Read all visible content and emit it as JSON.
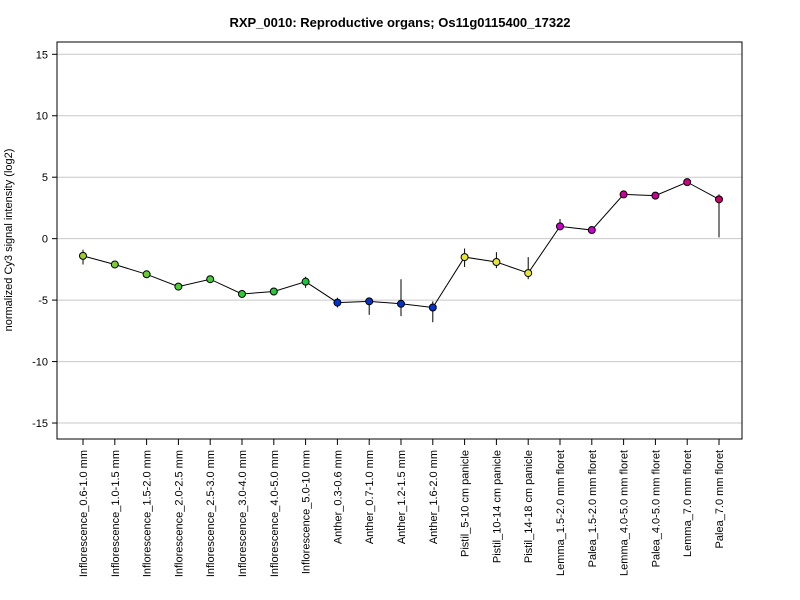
{
  "chart_data": {
    "type": "line",
    "title": "RXP_0010: Reproductive organs; Os11g0115400_17322",
    "xlabel": "",
    "ylabel": "normalized Cy3 signal intensity (log2)",
    "ylim": [
      -16.3,
      16
    ],
    "yticks": [
      15,
      10,
      5,
      0,
      -5,
      -10,
      -15
    ],
    "grid": "horizontal",
    "categories": [
      "Inflorescence_0.6-1.0 mm",
      "Inflorescence_1.0-1.5 mm",
      "Inflorescence_1.5-2.0 mm",
      "Inflorescence_2.0-2.5 mm",
      "Inflorescence_2.5-3.0 mm",
      "Inflorescence_3.0-4.0 mm",
      "Inflorescence_4.0-5.0 mm",
      "Inflorescence_5.0-10 mm",
      "Anther_0.3-0.6 mm",
      "Anther_0.7-1.0 mm",
      "Anther_1.2-1.5 mm",
      "Anther_1.6-2.0 mm",
      "Pistil_5-10 cm panicle",
      "Pistil_10-14 cm panicle",
      "Pistil_14-18 cm panicle",
      "Lemma_1.5-2.0 mm floret",
      "Palea_1.5-2.0 mm floret",
      "Lemma_4.0-5.0 mm floret",
      "Palea_4.0-5.0 mm floret",
      "Lemma_7.0 mm floret",
      "Palea_7.0 mm floret"
    ],
    "values": [
      -1.4,
      -2.1,
      -2.9,
      -3.9,
      -3.3,
      -4.5,
      -4.3,
      -3.5,
      -5.2,
      -5.1,
      -5.3,
      -5.6,
      -1.5,
      -1.9,
      -2.8,
      1.0,
      0.7,
      3.6,
      3.5,
      4.6,
      3.2
    ],
    "error_low": [
      -2.1,
      -2.3,
      -3.1,
      -4.0,
      -3.4,
      -4.6,
      -4.5,
      -4.0,
      -5.6,
      -6.2,
      -6.3,
      -6.8,
      -2.3,
      -2.4,
      -3.3,
      0.7,
      0.4,
      3.5,
      3.3,
      4.4,
      0.1
    ],
    "error_high": [
      -0.9,
      -1.9,
      -2.7,
      -3.8,
      -3.1,
      -4.4,
      -4.1,
      -3.1,
      -4.8,
      -4.8,
      -3.3,
      -5.1,
      -0.8,
      -1.1,
      -1.5,
      1.6,
      1.0,
      3.8,
      3.7,
      4.8,
      3.6
    ],
    "point_colors": [
      "#9acd32",
      "#7ccd32",
      "#66cd32",
      "#4fcd32",
      "#40cd32",
      "#30cd32",
      "#20cd32",
      "#10cd32",
      "#0033cc",
      "#0033cc",
      "#0033cc",
      "#0033cc",
      "#e6e633",
      "#e6e633",
      "#e6e633",
      "#cc00cc",
      "#cc00cc",
      "#cc0099",
      "#cc0099",
      "#cc0080",
      "#cc0066"
    ],
    "line_color": "#000000",
    "grid_color": "#c8c8c8"
  }
}
